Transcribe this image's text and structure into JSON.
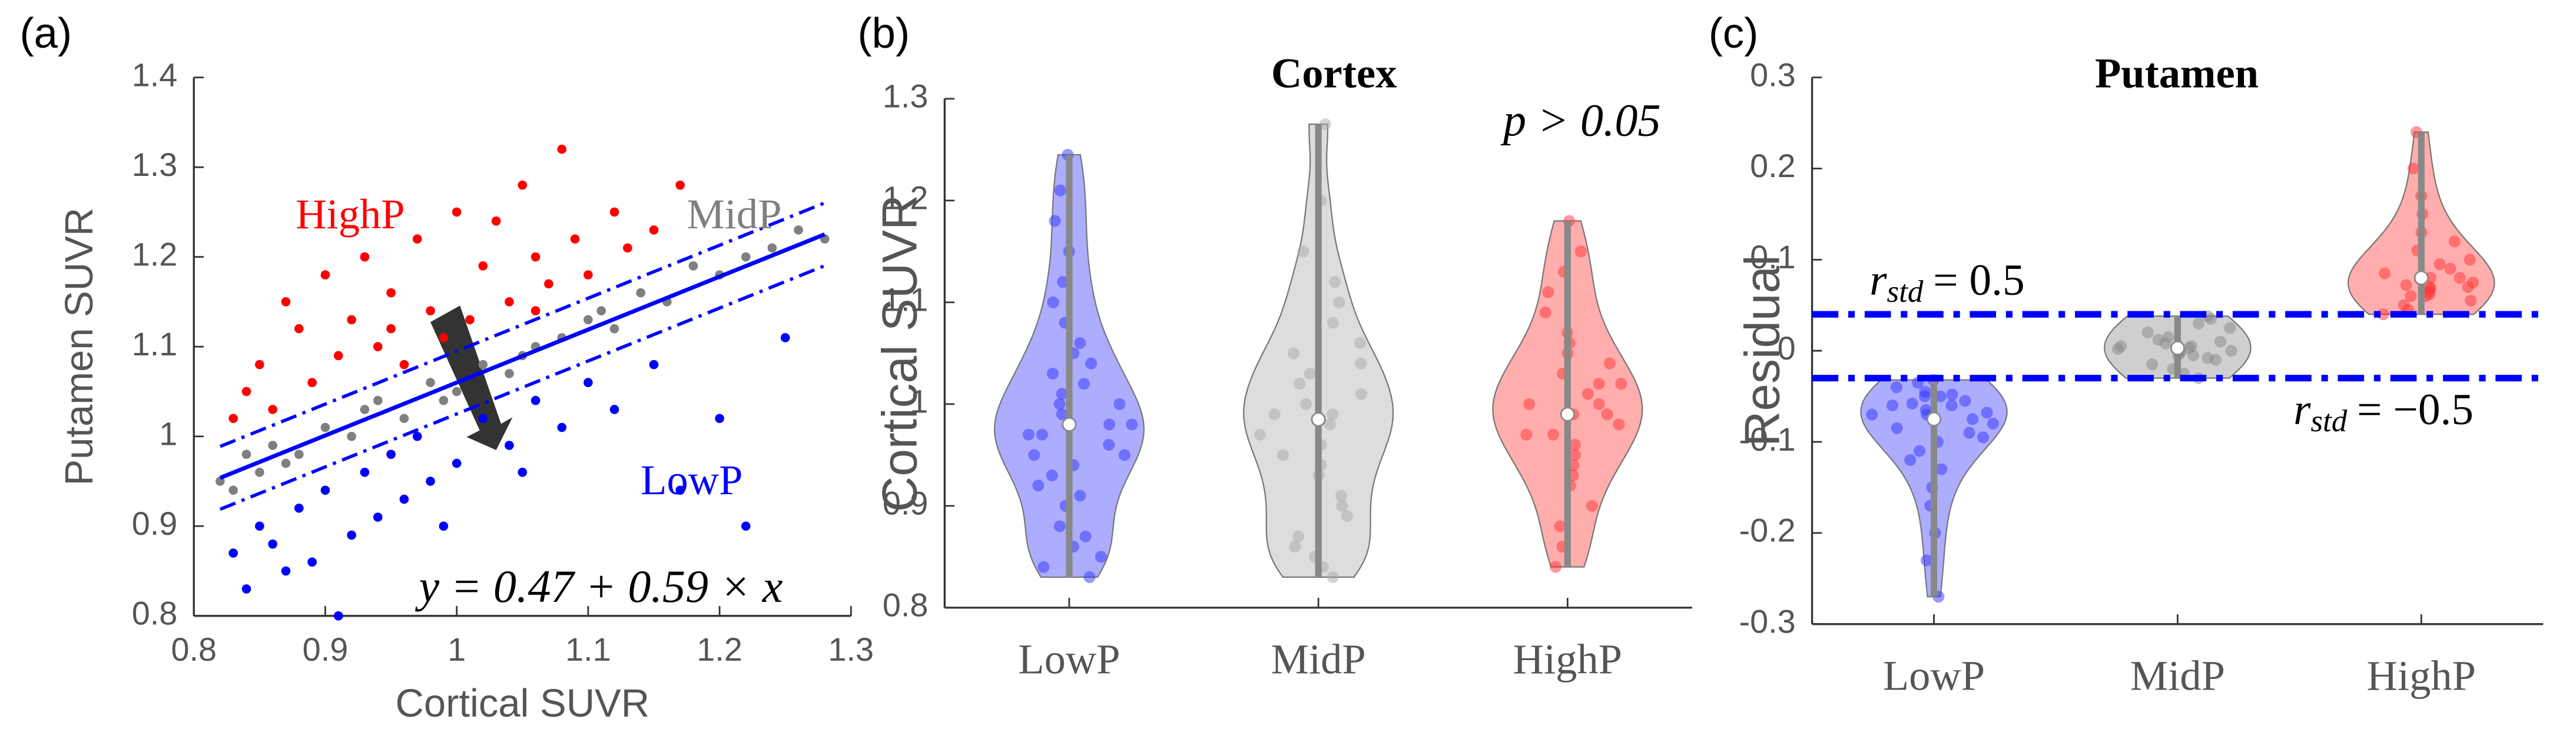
{
  "chart_data": [
    {
      "type": "scatter",
      "panel": "(a)",
      "xlabel": "Cortical SUVR",
      "ylabel": "Putamen SUVR",
      "xlim": [
        0.8,
        1.3
      ],
      "xticks": [
        0.8,
        0.9,
        1,
        1.1,
        1.2,
        1.3
      ],
      "ylim": [
        0.8,
        1.4
      ],
      "yticks": [
        0.8,
        0.9,
        1,
        1.1,
        1.2,
        1.3,
        1.4
      ],
      "equation": "y = 0.47 + 0.59 × x",
      "fit": {
        "intercept": 0.47,
        "slope": 0.59,
        "color": "#0000ff",
        "band": [
          0.035,
          -0.035
        ]
      },
      "series": [
        {
          "name": "HighP",
          "color": "#ff0000",
          "x": [
            0.83,
            0.84,
            0.85,
            0.86,
            0.87,
            0.88,
            0.89,
            0.9,
            0.91,
            0.92,
            0.93,
            0.94,
            0.95,
            0.96,
            0.97,
            0.98,
            0.99,
            1.0,
            1.01,
            1.02,
            1.04,
            1.05,
            1.06,
            1.07,
            1.08,
            1.09,
            1.1,
            1.12,
            1.13,
            1.15,
            1.17,
            1.06,
            0.95,
            1.03
          ],
          "y": [
            1.02,
            1.05,
            1.08,
            1.03,
            1.15,
            1.12,
            1.06,
            1.18,
            1.09,
            1.13,
            1.2,
            1.1,
            1.16,
            1.08,
            1.22,
            1.14,
            1.11,
            1.25,
            1.13,
            1.19,
            1.15,
            1.28,
            1.2,
            1.17,
            1.32,
            1.22,
            1.18,
            1.25,
            1.21,
            1.23,
            1.28,
            1.14,
            1.12,
            1.24
          ]
        },
        {
          "name": "MidP",
          "color": "#7f7f7f",
          "x": [
            0.82,
            0.83,
            0.84,
            0.85,
            0.86,
            0.88,
            0.9,
            0.92,
            0.94,
            0.96,
            0.98,
            1.0,
            1.02,
            1.04,
            1.06,
            1.08,
            1.1,
            1.12,
            1.14,
            1.16,
            1.18,
            1.2,
            1.22,
            1.24,
            1.26,
            1.28,
            0.87,
            0.93,
            0.99,
            1.05,
            1.11
          ],
          "y": [
            0.95,
            0.94,
            0.98,
            0.96,
            0.99,
            0.98,
            1.01,
            1.0,
            1.04,
            1.02,
            1.06,
            1.05,
            1.08,
            1.07,
            1.1,
            1.11,
            1.13,
            1.12,
            1.16,
            1.15,
            1.19,
            1.18,
            1.2,
            1.21,
            1.23,
            1.22,
            0.97,
            1.03,
            1.04,
            1.09,
            1.14
          ]
        },
        {
          "name": "LowP",
          "color": "#0000ff",
          "x": [
            0.83,
            0.84,
            0.85,
            0.86,
            0.87,
            0.88,
            0.89,
            0.9,
            0.91,
            0.92,
            0.93,
            0.94,
            0.95,
            0.96,
            0.97,
            0.98,
            1.0,
            1.02,
            1.04,
            1.06,
            1.08,
            1.1,
            1.12,
            1.15,
            1.17,
            1.2,
            1.22,
            1.25,
            0.99,
            1.05
          ],
          "y": [
            0.87,
            0.83,
            0.9,
            0.88,
            0.85,
            0.92,
            0.86,
            0.94,
            0.8,
            0.89,
            0.96,
            0.91,
            0.98,
            0.93,
            1.0,
            0.95,
            0.97,
            1.02,
            0.99,
            1.04,
            1.01,
            1.06,
            1.03,
            1.08,
            0.94,
            1.02,
            0.9,
            1.11,
            0.9,
            0.96
          ]
        }
      ]
    },
    {
      "type": "violin",
      "panel": "(b)",
      "title": "Cortex",
      "ylabel": "Cortical SUVR",
      "annotation": "p > 0.05",
      "categories": [
        "LowP",
        "MidP",
        "HighP"
      ],
      "ylim": [
        0.8,
        1.3
      ],
      "yticks": [
        0.8,
        0.9,
        1,
        1.1,
        1.2,
        1.3
      ],
      "colors": [
        "#3333ff",
        "#aaaaaa",
        "#ff3333"
      ],
      "medians": [
        0.98,
        0.985,
        0.99
      ],
      "points": [
        [
          0.83,
          0.84,
          0.86,
          0.88,
          0.9,
          0.91,
          0.92,
          0.93,
          0.94,
          0.95,
          0.96,
          0.97,
          0.98,
          0.98,
          0.99,
          1.0,
          1.01,
          1.02,
          1.03,
          1.04,
          1.05,
          1.06,
          1.08,
          1.1,
          1.12,
          1.15,
          1.18,
          1.21,
          1.245,
          0.85,
          0.87,
          0.97,
          1.0,
          0.95
        ],
        [
          0.83,
          0.84,
          0.85,
          0.87,
          0.89,
          0.91,
          0.93,
          0.94,
          0.96,
          0.97,
          0.98,
          0.99,
          1.0,
          1.01,
          1.02,
          1.03,
          1.05,
          1.06,
          1.08,
          1.1,
          1.12,
          1.15,
          1.2,
          1.275,
          0.86,
          0.9,
          0.99,
          1.04,
          0.95
        ],
        [
          0.84,
          0.86,
          0.88,
          0.9,
          0.92,
          0.93,
          0.94,
          0.95,
          0.96,
          0.97,
          0.98,
          0.99,
          1.0,
          1.0,
          1.01,
          1.02,
          1.03,
          1.04,
          1.05,
          1.06,
          1.07,
          1.09,
          1.11,
          1.13,
          1.15,
          1.18,
          0.97,
          0.99,
          1.02
        ]
      ]
    },
    {
      "type": "violin",
      "panel": "(c)",
      "title": "Putamen",
      "ylabel": "Residual",
      "categories": [
        "LowP",
        "MidP",
        "HighP"
      ],
      "ylim": [
        -0.3,
        0.3
      ],
      "yticks": [
        -0.3,
        -0.2,
        -0.1,
        0,
        0.1,
        0.2,
        0.3
      ],
      "colors": [
        "#3333ff",
        "#888888",
        "#ff3333"
      ],
      "medians": [
        -0.075,
        0.003,
        0.08
      ],
      "symbol": "r",
      "subscript": "std",
      "thresholds": [
        {
          "value": 0.04,
          "label": "= 0.5"
        },
        {
          "value": -0.03,
          "label": "= −0.5"
        }
      ],
      "points": [
        [
          -0.27,
          -0.23,
          -0.2,
          -0.17,
          -0.15,
          -0.13,
          -0.12,
          -0.11,
          -0.1,
          -0.095,
          -0.09,
          -0.085,
          -0.08,
          -0.075,
          -0.07,
          -0.068,
          -0.065,
          -0.06,
          -0.058,
          -0.055,
          -0.05,
          -0.048,
          -0.045,
          -0.04,
          -0.035,
          -0.032,
          -0.07,
          -0.06,
          -0.05
        ],
        [
          -0.03,
          -0.025,
          -0.02,
          -0.015,
          -0.01,
          -0.008,
          -0.005,
          -0.002,
          0,
          0.002,
          0.003,
          0.005,
          0.008,
          0.01,
          0.012,
          0.015,
          0.02,
          0.025,
          0.03,
          0.035,
          0.038,
          0.005,
          -0.005,
          0
        ],
        [
          0.04,
          0.045,
          0.05,
          0.055,
          0.06,
          0.062,
          0.065,
          0.068,
          0.07,
          0.072,
          0.075,
          0.08,
          0.085,
          0.09,
          0.095,
          0.1,
          0.11,
          0.12,
          0.13,
          0.15,
          0.17,
          0.2,
          0.24,
          0.06,
          0.07,
          0.08
        ]
      ]
    }
  ]
}
